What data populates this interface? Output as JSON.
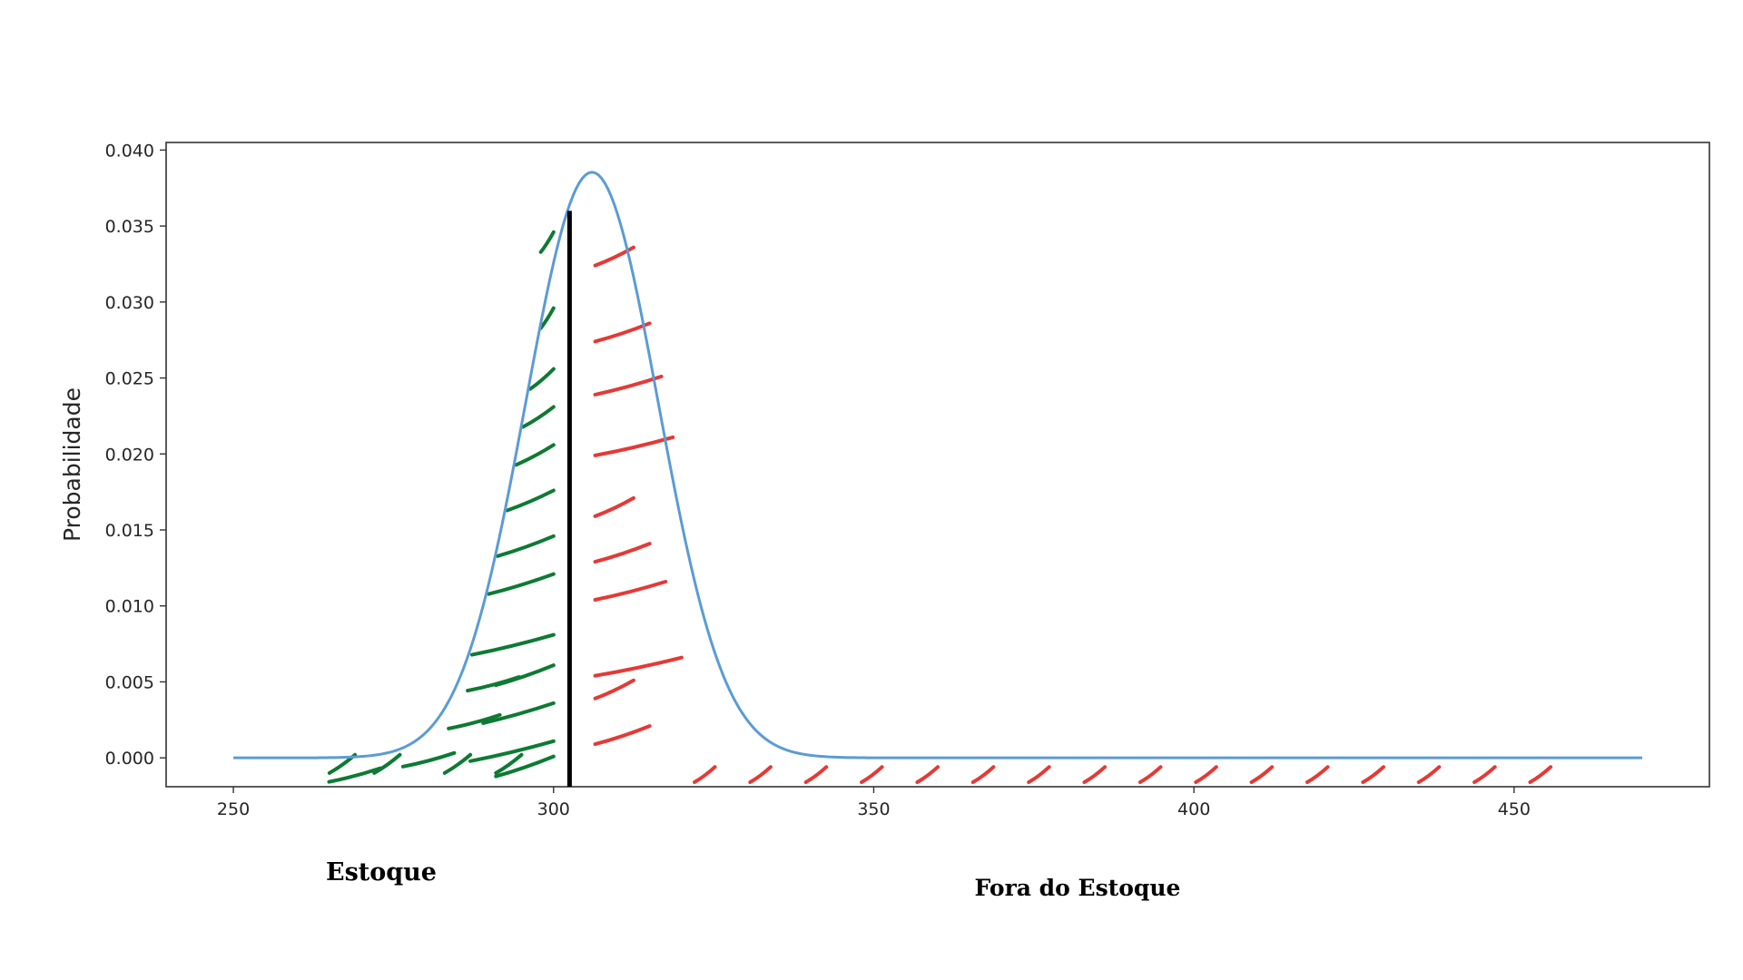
{
  "chart_data": {
    "type": "line",
    "title": "",
    "xlabel": "",
    "ylabel": "Probabilidade",
    "xlim": [
      239.5,
      480.5
    ],
    "ylim": [
      -0.0019,
      0.0405
    ],
    "x_ticks": [
      250,
      300,
      350,
      400,
      450
    ],
    "x_tick_labels": [
      "250",
      "300",
      "350",
      "400",
      "450"
    ],
    "y_ticks": [
      0.0,
      0.005,
      0.01,
      0.015,
      0.02,
      0.025,
      0.03,
      0.035,
      0.04
    ],
    "y_tick_labels": [
      "0.000",
      "0.005",
      "0.010",
      "0.015",
      "0.020",
      "0.025",
      "0.030",
      "0.035",
      "0.040"
    ],
    "grid": false,
    "series": [
      {
        "name": "",
        "color": "#5b9bd5",
        "distribution": "normal",
        "mean": 306,
        "std": 10.35,
        "x_range": [
          250,
          470
        ]
      }
    ],
    "threshold": {
      "x": 302.5,
      "y_top": 0.036,
      "color": "#000000"
    },
    "regions": [
      {
        "label": "Estoque",
        "color": "#0e7a33",
        "x_from": 250,
        "x_to": 302.5
      },
      {
        "label": "Fora do Estoque",
        "color": "#e53935",
        "x_from": 302.5,
        "x_to": 470
      }
    ]
  },
  "annotations": {
    "left_label": "Estoque",
    "right_label": "Fora do Estoque"
  }
}
